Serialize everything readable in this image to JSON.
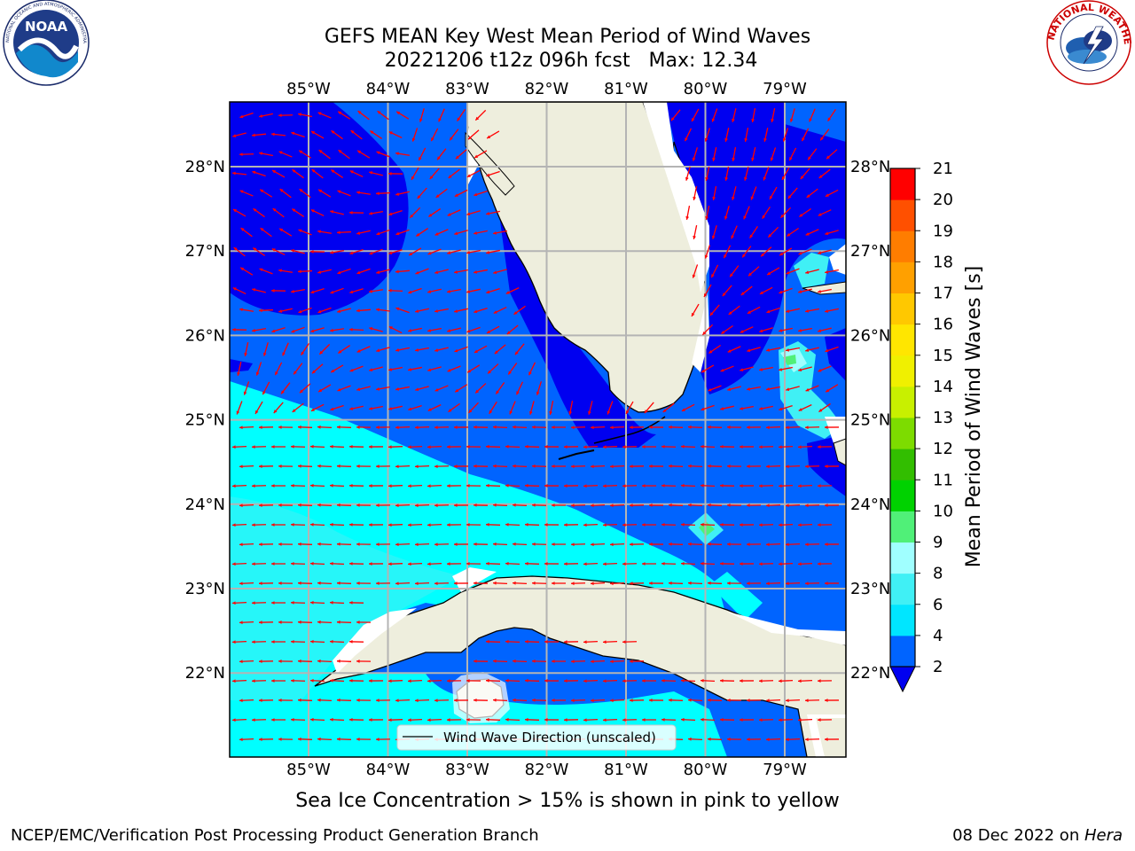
{
  "title": {
    "line1": "GEFS MEAN Key West Mean Period of Wind Waves",
    "line2": "20221206 t12z 096h fcst   Max: 12.34"
  },
  "logos": {
    "noaa_text": "NOAA",
    "noaa_ring": "NATIONAL OCEANIC AND ATMOSPHERIC ADMINISTRATION · U.S. DEPARTMENT OF COMMERCE",
    "nws_ring": "NATIONAL WEATHER SERVICE"
  },
  "axes": {
    "lon_ticks": [
      "85°W",
      "84°W",
      "83°W",
      "82°W",
      "81°W",
      "80°W",
      "79°W"
    ],
    "lat_ticks": [
      "28°N",
      "27°N",
      "26°N",
      "25°N",
      "24°N",
      "23°N",
      "22°N"
    ],
    "lon_range": [
      -86,
      -78.3
    ],
    "lat_range": [
      21.0,
      28.75
    ]
  },
  "colorbar": {
    "label": "Mean Period of Wind Waves [s]",
    "ticks": [
      "21",
      "20",
      "19",
      "18",
      "17",
      "16",
      "15",
      "14",
      "13",
      "12",
      "11",
      "10",
      "9",
      "8",
      "6",
      "4",
      "2"
    ],
    "levels": [
      2,
      4,
      6,
      8,
      9,
      10,
      11,
      12,
      13,
      14,
      15,
      16,
      17,
      18,
      19,
      20,
      21
    ],
    "colors": [
      "#0064ff",
      "#00e6ff",
      "#40f0f5",
      "#a0ffff",
      "#50f078",
      "#00d200",
      "#32be00",
      "#7ddc00",
      "#c8f000",
      "#f0f000",
      "#ffe600",
      "#ffc800",
      "#ffa000",
      "#ff7d00",
      "#ff5000",
      "#ff0000"
    ],
    "under_color": "#0000f0"
  },
  "legend": {
    "label": "Wind Wave Direction (unscaled)"
  },
  "colors": {
    "land": "#eeeedd",
    "arrow": "#ff0000",
    "grid": "#b4b4b4",
    "dark_blue": "#0000f0",
    "mid_blue": "#0064ff",
    "cyan": "#00ffff",
    "light_cyan": "#40f0f5"
  },
  "subtitle": "Sea Ice Concentration > 15% is shown in pink to yellow",
  "footer": {
    "left": "NCEP/EMC/Verification Post Processing Product Generation Branch",
    "right_date": "08 Dec 2022 on ",
    "right_host": "Hera"
  }
}
